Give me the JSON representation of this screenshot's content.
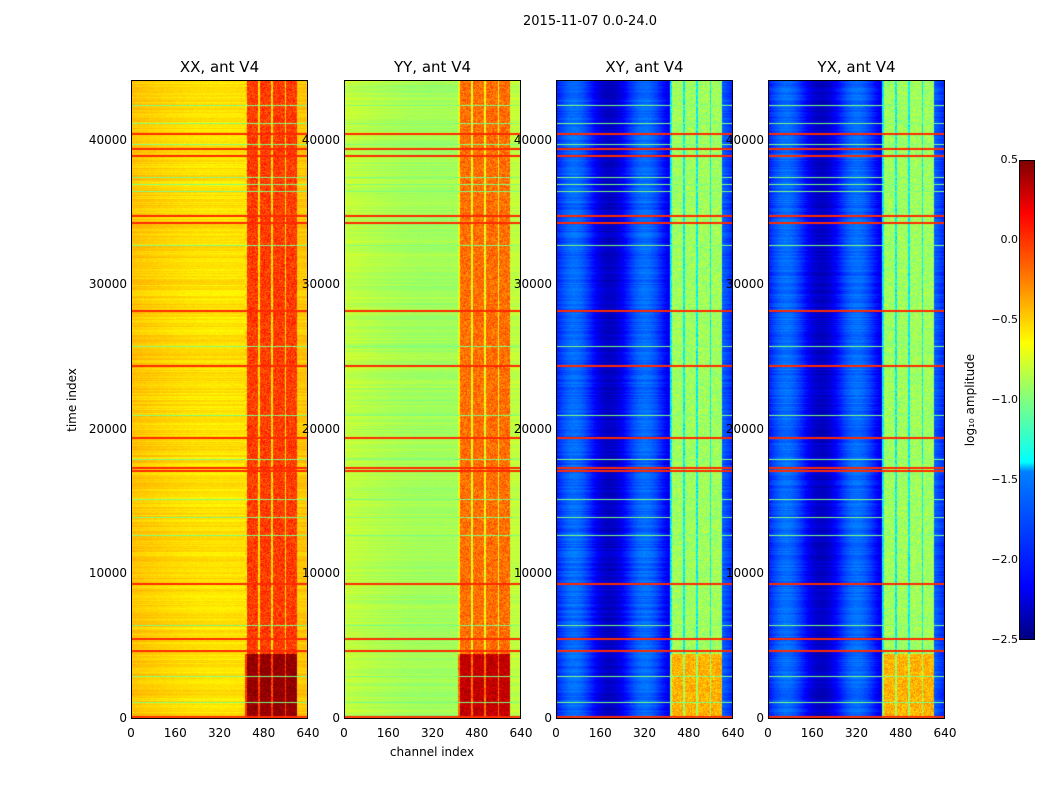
{
  "chart_data": {
    "type": "heatmap",
    "title": "2015-11-07 0.0-24.0",
    "xlabel": "channel index",
    "ylabel": "time index",
    "xlim": [
      0,
      640
    ],
    "ylim": [
      0,
      44200
    ],
    "x_ticks": [
      "0",
      "160",
      "320",
      "480",
      "640"
    ],
    "y_ticks": [
      {
        "value": 0,
        "label": "0"
      },
      {
        "value": 10000,
        "label": "10000"
      },
      {
        "value": 20000,
        "label": "20000"
      },
      {
        "value": 30000,
        "label": "30000"
      },
      {
        "value": 40000,
        "label": "40000"
      }
    ],
    "colorbar": {
      "label": "log₁₀ amplitude",
      "range": [
        -2.5,
        0.5
      ],
      "colormap": "jet",
      "ticks": [
        "0.5",
        "0.0",
        "−0.5",
        "−1.0",
        "−1.5",
        "−2.0",
        "−2.5"
      ]
    },
    "panels": [
      {
        "title": "XX, ant V4",
        "base_log_amp": -0.45,
        "rfi_log_amp": -0.05
      },
      {
        "title": "YY, ant V4",
        "base_log_amp": -0.8,
        "rfi_log_amp": -0.2
      },
      {
        "title": "XY, ant V4",
        "base_log_amp": -1.95,
        "rfi_log_amp": -0.9
      },
      {
        "title": "YX, ant V4",
        "base_log_amp": -1.95,
        "rfi_log_amp": -0.9
      }
    ],
    "rfi_channel_range": [
      410,
      600
    ],
    "strong_rfi_time_range": [
      200,
      4500
    ],
    "bright_time_rows": [
      210,
      4780,
      5600,
      9410,
      17230,
      17440,
      19510,
      24500,
      28300,
      34390,
      34880,
      39030,
      39520,
      40550
    ],
    "mid_time_rows": [
      1200,
      3000,
      6500,
      12700,
      14000,
      15200,
      18000,
      21000,
      25800,
      32800,
      36500,
      37000,
      37500,
      39800,
      41200,
      42500
    ]
  }
}
